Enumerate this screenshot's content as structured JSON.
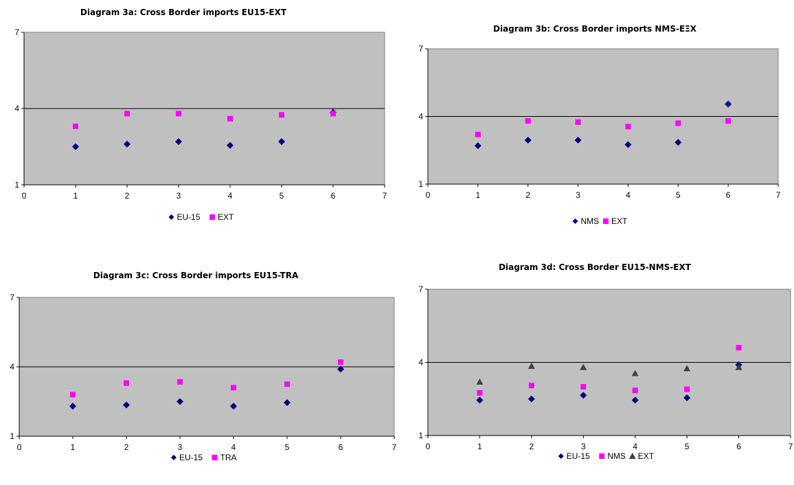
{
  "chart_data": [
    {
      "type": "scatter",
      "title": "Diagram 3a: Cross Border imports EU15-EXT",
      "xlim": [
        0,
        7
      ],
      "ylim": [
        1,
        7
      ],
      "xticks": [
        "0",
        "1",
        "2",
        "3",
        "4",
        "5",
        "6",
        "7"
      ],
      "yticks": [
        "1",
        "4",
        "7"
      ],
      "reference_line_y": 4,
      "plot_background": "#c0c0c0",
      "legend_position": "bottom",
      "series": [
        {
          "name": "EU-15",
          "marker": "diamond",
          "color": "#000080",
          "x": [
            1,
            2,
            3,
            4,
            5,
            6
          ],
          "y": [
            2.5,
            2.6,
            2.7,
            2.55,
            2.7,
            3.85
          ]
        },
        {
          "name": "EXT",
          "marker": "square",
          "color": "#ff00ff",
          "x": [
            1,
            2,
            3,
            4,
            5,
            6
          ],
          "y": [
            3.3,
            3.8,
            3.8,
            3.6,
            3.75,
            3.8
          ]
        }
      ]
    },
    {
      "type": "scatter",
      "title": "Diagram 3b: Cross Border imports NMS-EΞX",
      "xlim": [
        0,
        7
      ],
      "ylim": [
        1,
        7
      ],
      "xticks": [
        "0",
        "1",
        "2",
        "3",
        "4",
        "5",
        "6",
        "7"
      ],
      "yticks": [
        "1",
        "4",
        "7"
      ],
      "reference_line_y": 4,
      "plot_background": "#c0c0c0",
      "legend_position": "bottom",
      "series": [
        {
          "name": "NMS",
          "marker": "diamond",
          "color": "#000080",
          "x": [
            1,
            2,
            3,
            4,
            5,
            6
          ],
          "y": [
            2.7,
            2.95,
            2.95,
            2.75,
            2.85,
            4.55
          ]
        },
        {
          "name": "EXT",
          "marker": "square",
          "color": "#ff00ff",
          "x": [
            1,
            2,
            3,
            4,
            5,
            6
          ],
          "y": [
            3.2,
            3.8,
            3.75,
            3.55,
            3.7,
            3.8
          ]
        }
      ]
    },
    {
      "type": "scatter",
      "title": "Diagram 3c: Cross Border imports EU15-TRA",
      "xlim": [
        0,
        7
      ],
      "ylim": [
        1,
        7
      ],
      "xticks": [
        "0",
        "1",
        "2",
        "3",
        "4",
        "5",
        "6",
        "7"
      ],
      "yticks": [
        "1",
        "4",
        "7"
      ],
      "reference_line_y": 4,
      "plot_background": "#c0c0c0",
      "legend_position": "bottom",
      "series": [
        {
          "name": "EU-15",
          "marker": "diamond",
          "color": "#000080",
          "x": [
            1,
            2,
            3,
            4,
            5,
            6
          ],
          "y": [
            2.3,
            2.35,
            2.5,
            2.3,
            2.45,
            3.9
          ]
        },
        {
          "name": "TRA",
          "marker": "square",
          "color": "#ff00ff",
          "x": [
            1,
            2,
            3,
            4,
            5,
            6
          ],
          "y": [
            2.8,
            3.3,
            3.35,
            3.1,
            3.25,
            4.2
          ]
        }
      ]
    },
    {
      "type": "scatter",
      "title": "Diagram 3d: Cross Border EU15-NMS-EXT",
      "xlim": [
        0,
        7
      ],
      "ylim": [
        1,
        7
      ],
      "xticks": [
        "0",
        "1",
        "2",
        "3",
        "4",
        "5",
        "6",
        "7"
      ],
      "yticks": [
        "1",
        "4",
        "7"
      ],
      "reference_line_y": 4,
      "plot_background": "#c0c0c0",
      "legend_position": "bottom",
      "series": [
        {
          "name": "EU-15",
          "marker": "diamond",
          "color": "#000080",
          "x": [
            1,
            2,
            3,
            4,
            5,
            6
          ],
          "y": [
            2.45,
            2.5,
            2.65,
            2.45,
            2.55,
            3.9
          ]
        },
        {
          "name": "NMS",
          "marker": "square",
          "color": "#ff00ff",
          "x": [
            1,
            2,
            3,
            4,
            5,
            6
          ],
          "y": [
            2.75,
            3.05,
            3.0,
            2.85,
            2.9,
            4.6
          ]
        },
        {
          "name": "EXT",
          "marker": "triangle",
          "color": "#404040",
          "x": [
            1,
            2,
            3,
            4,
            5,
            6
          ],
          "y": [
            3.2,
            3.85,
            3.8,
            3.55,
            3.75,
            3.8
          ]
        }
      ]
    }
  ]
}
